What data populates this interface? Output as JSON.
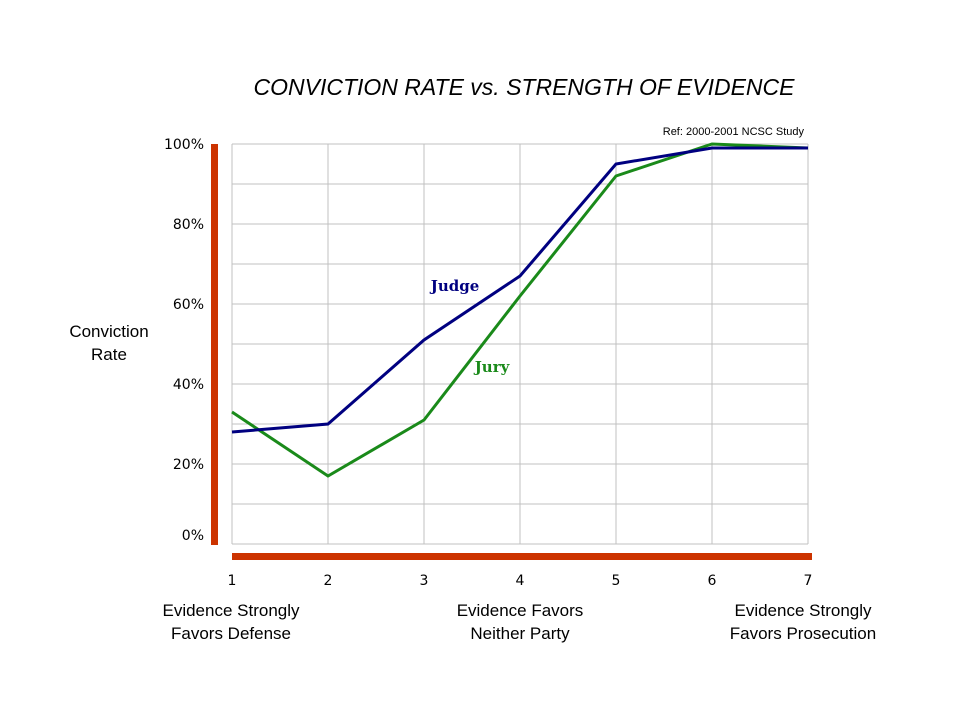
{
  "chart_data": {
    "type": "line",
    "title": "CONVICTION RATE vs. STRENGTH OF EVIDENCE",
    "reference": "Ref: 2000-2001 NCSC Study",
    "ylabel_lines": [
      "Conviction",
      "Rate"
    ],
    "x": [
      1,
      2,
      3,
      4,
      5,
      6,
      7
    ],
    "x_tick_labels": [
      "1",
      "2",
      "3",
      "4",
      "5",
      "6",
      "7"
    ],
    "y_tick_labels": [
      "0%",
      "20%",
      "40%",
      "60%",
      "80%",
      "100%"
    ],
    "ylim": [
      0,
      100
    ],
    "xlim": [
      1,
      7
    ],
    "grid": true,
    "x_annotations": [
      {
        "x": 1,
        "lines": [
          "Evidence Strongly",
          "Favors Defense"
        ]
      },
      {
        "x": 4,
        "lines": [
          "Evidence Favors",
          "Neither Party"
        ]
      },
      {
        "x": 7,
        "lines": [
          "Evidence Strongly",
          "Favors Prosecution"
        ]
      }
    ],
    "axis_color": "#cc3300",
    "grid_color": "#c0c0c0",
    "series": [
      {
        "name": "Judge",
        "color": "#000080",
        "values": [
          28,
          30,
          51,
          67,
          95,
          99,
          99
        ]
      },
      {
        "name": "Jury",
        "color": "#1a8a1a",
        "values": [
          33,
          17,
          31,
          62,
          92,
          100,
          99
        ]
      }
    ]
  }
}
